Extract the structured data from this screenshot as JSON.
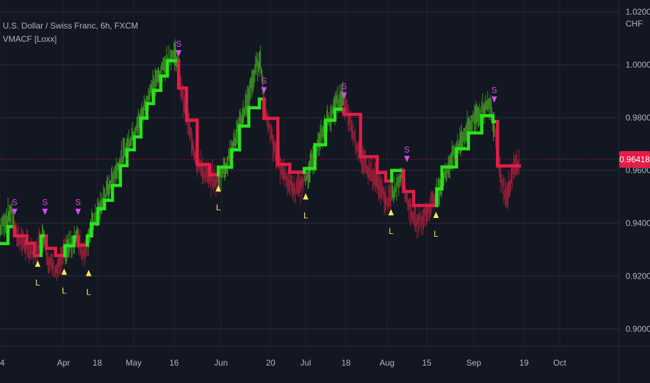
{
  "header": {
    "symbol_title": "U.S. Dollar / Swiss Franc, 6h, FXCM",
    "indicator_title": "VMACF [Loxx]",
    "currency": "CHF"
  },
  "colors": {
    "background": "#131722",
    "grid": "#2a2e39",
    "axis_text": "#b2b5be",
    "bull": "#28e41c",
    "bear": "#e11d48",
    "bull_bar": "#3f8f25",
    "bear_bar": "#9a1f38",
    "short_signal": "#d84ff0",
    "long_signal": "#ffe75a",
    "price_line": "#c2233c",
    "price_label_bg": "#e11d48"
  },
  "chart_data": {
    "type": "line",
    "yaxis": {
      "ticks": [
        "1.02000",
        "1.00000",
        "0.98000",
        "0.96000",
        "0.94000",
        "0.92000",
        "0.90000"
      ],
      "tick_values": [
        1.02,
        1.0,
        0.98,
        0.96,
        0.94,
        0.92,
        0.9
      ],
      "ylim": [
        0.8935,
        1.0245
      ]
    },
    "xaxis": {
      "ticks": [
        "4",
        "Apr",
        "18",
        "May",
        "16",
        "Jun",
        "20",
        "Jul",
        "18",
        "Aug",
        "15",
        "Sep",
        "19",
        "Oct"
      ],
      "tick_index": [
        0,
        96,
        147,
        202,
        263,
        334,
        409,
        462,
        523,
        585,
        645,
        716,
        792,
        846
      ],
      "xlim": [
        0,
        935
      ]
    },
    "last_price": "0.96418",
    "last_value": 0.96418,
    "filter_series": {
      "name": "",
      "points": [
        [
          0,
          0.9323
        ],
        [
          12,
          0.9323
        ],
        [
          12,
          0.9387
        ],
        [
          22,
          0.9387
        ],
        [
          22,
          0.9352
        ],
        [
          40,
          0.9352
        ],
        [
          40,
          0.9324
        ],
        [
          52,
          0.9324
        ],
        [
          52,
          0.9278
        ],
        [
          62,
          0.9278
        ],
        [
          62,
          0.9352
        ],
        [
          70,
          0.9352
        ],
        [
          70,
          0.9305
        ],
        [
          84,
          0.9305
        ],
        [
          84,
          0.9278
        ],
        [
          98,
          0.9278
        ],
        [
          98,
          0.9315
        ],
        [
          112,
          0.9315
        ],
        [
          112,
          0.9348
        ],
        [
          118,
          0.9348
        ],
        [
          118,
          0.9317
        ],
        [
          132,
          0.9317
        ],
        [
          132,
          0.9352
        ],
        [
          138,
          0.9352
        ],
        [
          138,
          0.9398
        ],
        [
          148,
          0.9398
        ],
        [
          148,
          0.9455
        ],
        [
          158,
          0.9455
        ],
        [
          158,
          0.9487
        ],
        [
          170,
          0.9487
        ],
        [
          170,
          0.9543
        ],
        [
          182,
          0.9543
        ],
        [
          182,
          0.9618
        ],
        [
          192,
          0.9618
        ],
        [
          192,
          0.9678
        ],
        [
          203,
          0.9678
        ],
        [
          203,
          0.9727
        ],
        [
          213,
          0.9727
        ],
        [
          213,
          0.9798
        ],
        [
          222,
          0.9798
        ],
        [
          222,
          0.9853
        ],
        [
          232,
          0.9853
        ],
        [
          232,
          0.9903
        ],
        [
          243,
          0.9903
        ],
        [
          243,
          0.9957
        ],
        [
          253,
          0.9957
        ],
        [
          253,
          1.0015
        ],
        [
          270,
          1.0015
        ],
        [
          270,
          0.9912
        ],
        [
          282,
          0.9912
        ],
        [
          282,
          0.979
        ],
        [
          298,
          0.979
        ],
        [
          298,
          0.9622
        ],
        [
          317,
          0.9622
        ],
        [
          317,
          0.9583
        ],
        [
          330,
          0.9583
        ],
        [
          330,
          0.9612
        ],
        [
          350,
          0.9612
        ],
        [
          350,
          0.9678
        ],
        [
          362,
          0.9678
        ],
        [
          362,
          0.9768
        ],
        [
          376,
          0.9768
        ],
        [
          376,
          0.9837
        ],
        [
          392,
          0.9837
        ],
        [
          392,
          0.987
        ],
        [
          399,
          0.987
        ],
        [
          399,
          0.9797
        ],
        [
          420,
          0.9797
        ],
        [
          420,
          0.9623
        ],
        [
          438,
          0.9623
        ],
        [
          438,
          0.9593
        ],
        [
          460,
          0.9593
        ],
        [
          460,
          0.9607
        ],
        [
          476,
          0.9607
        ],
        [
          476,
          0.9697
        ],
        [
          492,
          0.9697
        ],
        [
          492,
          0.979
        ],
        [
          506,
          0.979
        ],
        [
          506,
          0.9832
        ],
        [
          520,
          0.9832
        ],
        [
          520,
          0.9812
        ],
        [
          545,
          0.9812
        ],
        [
          545,
          0.9652
        ],
        [
          570,
          0.9652
        ],
        [
          570,
          0.9592
        ],
        [
          583,
          0.9592
        ],
        [
          583,
          0.956
        ],
        [
          592,
          0.956
        ],
        [
          592,
          0.96
        ],
        [
          610,
          0.96
        ],
        [
          610,
          0.952
        ],
        [
          625,
          0.952
        ],
        [
          625,
          0.9467
        ],
        [
          660,
          0.9467
        ],
        [
          660,
          0.953
        ],
        [
          668,
          0.953
        ],
        [
          668,
          0.9613
        ],
        [
          690,
          0.9613
        ],
        [
          690,
          0.9682
        ],
        [
          708,
          0.9682
        ],
        [
          708,
          0.9742
        ],
        [
          728,
          0.9742
        ],
        [
          728,
          0.9807
        ],
        [
          745,
          0.9807
        ],
        [
          745,
          0.9785
        ],
        [
          752,
          0.9785
        ],
        [
          752,
          0.9617
        ],
        [
          785,
          0.9617
        ]
      ],
      "trend_changes": [
        [
          0,
          "bull"
        ],
        [
          22,
          "bear"
        ],
        [
          62,
          "bull"
        ],
        [
          68,
          "bear"
        ],
        [
          98,
          "bull"
        ],
        [
          118,
          "bear"
        ],
        [
          132,
          "bull"
        ],
        [
          270,
          "bear"
        ],
        [
          330,
          "bull"
        ],
        [
          398,
          "bear"
        ],
        [
          460,
          "bull"
        ],
        [
          520,
          "bear"
        ],
        [
          592,
          "bull"
        ],
        [
          610,
          "bear"
        ],
        [
          660,
          "bull"
        ],
        [
          747,
          "bear"
        ]
      ]
    },
    "price_path": [
      [
        0,
        0.938
      ],
      [
        10,
        0.942
      ],
      [
        18,
        0.944
      ],
      [
        24,
        0.936
      ],
      [
        38,
        0.932
      ],
      [
        52,
        0.928
      ],
      [
        60,
        0.933
      ],
      [
        66,
        0.936
      ],
      [
        74,
        0.925
      ],
      [
        86,
        0.922
      ],
      [
        98,
        0.929
      ],
      [
        110,
        0.933
      ],
      [
        118,
        0.935
      ],
      [
        126,
        0.928
      ],
      [
        136,
        0.937
      ],
      [
        150,
        0.945
      ],
      [
        170,
        0.957
      ],
      [
        190,
        0.968
      ],
      [
        210,
        0.978
      ],
      [
        228,
        0.99
      ],
      [
        245,
        0.998
      ],
      [
        256,
        1.003
      ],
      [
        266,
        1.004
      ],
      [
        272,
        0.994
      ],
      [
        284,
        0.978
      ],
      [
        298,
        0.963
      ],
      [
        312,
        0.958
      ],
      [
        328,
        0.956
      ],
      [
        342,
        0.962
      ],
      [
        356,
        0.972
      ],
      [
        372,
        0.985
      ],
      [
        386,
        0.998
      ],
      [
        393,
        1.003
      ],
      [
        400,
        0.985
      ],
      [
        414,
        0.968
      ],
      [
        430,
        0.958
      ],
      [
        446,
        0.952
      ],
      [
        460,
        0.956
      ],
      [
        476,
        0.966
      ],
      [
        492,
        0.977
      ],
      [
        508,
        0.985
      ],
      [
        518,
        0.988
      ],
      [
        528,
        0.98
      ],
      [
        542,
        0.967
      ],
      [
        556,
        0.961
      ],
      [
        572,
        0.955
      ],
      [
        584,
        0.948
      ],
      [
        596,
        0.952
      ],
      [
        608,
        0.958
      ],
      [
        616,
        0.948
      ],
      [
        630,
        0.94
      ],
      [
        648,
        0.945
      ],
      [
        662,
        0.952
      ],
      [
        680,
        0.963
      ],
      [
        700,
        0.973
      ],
      [
        720,
        0.981
      ],
      [
        740,
        0.985
      ],
      [
        748,
        0.976
      ],
      [
        758,
        0.956
      ],
      [
        766,
        0.95
      ],
      [
        776,
        0.96
      ],
      [
        785,
        0.964
      ]
    ],
    "signals": [
      {
        "type": "short",
        "label": "S",
        "x": 22,
        "y": 0.9455
      },
      {
        "type": "long",
        "label": "L",
        "x": 57,
        "y": 0.9235
      },
      {
        "type": "short",
        "label": "S",
        "x": 68,
        "y": 0.9455
      },
      {
        "type": "long",
        "label": "L",
        "x": 97,
        "y": 0.9205
      },
      {
        "type": "short",
        "label": "S",
        "x": 118,
        "y": 0.9455
      },
      {
        "type": "long",
        "label": "L",
        "x": 134,
        "y": 0.92
      },
      {
        "type": "short",
        "label": "S",
        "x": 270,
        "y": 1.0055
      },
      {
        "type": "long",
        "label": "L",
        "x": 330,
        "y": 0.952
      },
      {
        "type": "short",
        "label": "S",
        "x": 399,
        "y": 0.9915
      },
      {
        "type": "long",
        "label": "L",
        "x": 462,
        "y": 0.949
      },
      {
        "type": "short",
        "label": "S",
        "x": 520,
        "y": 0.9895
      },
      {
        "type": "long",
        "label": "L",
        "x": 591,
        "y": 0.943
      },
      {
        "type": "short",
        "label": "S",
        "x": 615,
        "y": 0.9655
      },
      {
        "type": "long",
        "label": "L",
        "x": 659,
        "y": 0.942
      },
      {
        "type": "short",
        "label": "S",
        "x": 747,
        "y": 0.988
      }
    ]
  }
}
